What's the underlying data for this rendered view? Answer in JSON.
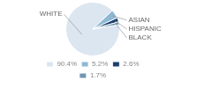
{
  "chart_data": {
    "type": "pie",
    "categories": [
      "WHITE",
      "ASIAN",
      "HISPANIC",
      "BLACK"
    ],
    "values": [
      90.4,
      5.2,
      2.6,
      1.7
    ],
    "value_labels": [
      "90.4%",
      "5.2%",
      "2.6%",
      "1.7%"
    ],
    "colors": [
      "#dce6f1",
      "#8eb8d4",
      "#1c3f6e",
      "#7096b0"
    ],
    "legend": "bottom"
  }
}
